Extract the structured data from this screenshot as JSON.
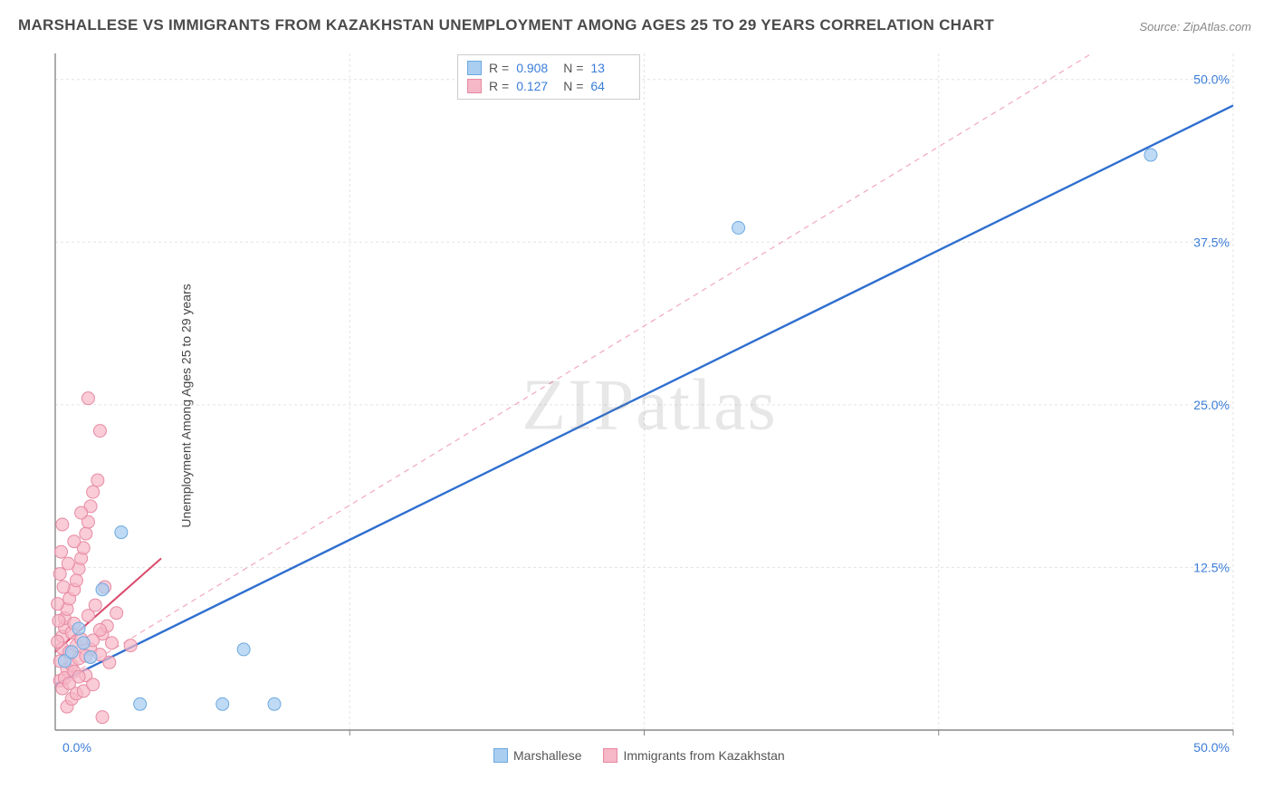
{
  "title": "MARSHALLESE VS IMMIGRANTS FROM KAZAKHSTAN UNEMPLOYMENT AMONG AGES 25 TO 29 YEARS CORRELATION CHART",
  "source": "Source: ZipAtlas.com",
  "y_axis_label": "Unemployment Among Ages 25 to 29 years",
  "watermark": "ZIPatlas",
  "chart": {
    "type": "scatter",
    "xlim": [
      0,
      50
    ],
    "ylim": [
      0,
      52
    ],
    "background_color": "#ffffff",
    "grid_color": "#e3e3e3",
    "axis_line_color": "#888888",
    "x_ticks": [
      0,
      12.5,
      25,
      37.5,
      50
    ],
    "y_ticks": [
      12.5,
      25,
      37.5,
      50
    ],
    "y_tick_labels": [
      "12.5%",
      "25.0%",
      "37.5%",
      "50.0%"
    ],
    "x_origin_label": "0.0%",
    "x_end_label": "50.0%",
    "tick_label_color": "#3b7dd8",
    "tick_label_fontsize": 14,
    "series_a": {
      "name": "Marshallese",
      "color_fill": "#a9cef0",
      "color_stroke": "#6da9e0",
      "marker_radius": 7,
      "marker_opacity": 0.75,
      "R": "0.908",
      "N": "13",
      "trend": {
        "solid": {
          "x1": 0,
          "y1": 3.5,
          "x2": 50,
          "y2": 48.0,
          "color": "#2f6fd0",
          "width": 2.4
        },
        "dashed": {
          "x1": 0,
          "y1": 3.5,
          "x2": 44,
          "y2": 52,
          "color": "#f2a9bb",
          "width": 1.2,
          "dash": "6,5"
        }
      },
      "points": [
        [
          0.4,
          5.3
        ],
        [
          0.7,
          6.0
        ],
        [
          1.5,
          5.6
        ],
        [
          2.0,
          10.8
        ],
        [
          2.8,
          15.2
        ],
        [
          3.6,
          2.0
        ],
        [
          7.1,
          2.0
        ],
        [
          9.3,
          2.0
        ],
        [
          8.0,
          6.2
        ],
        [
          1.2,
          6.7
        ],
        [
          1.0,
          7.8
        ],
        [
          29.0,
          38.6
        ],
        [
          46.5,
          44.2
        ]
      ]
    },
    "series_b": {
      "name": "Immigrants from Kazakhstan",
      "color_fill": "#f6b7c6",
      "color_stroke": "#e78aa3",
      "marker_radius": 7,
      "marker_opacity": 0.7,
      "R": "0.127",
      "N": "64",
      "trend": {
        "solid": {
          "x1": 0,
          "y1": 6.0,
          "x2": 4.5,
          "y2": 13.2,
          "color": "#d94a6a",
          "width": 2.0
        }
      },
      "points": [
        [
          0.2,
          5.3
        ],
        [
          0.3,
          6.3
        ],
        [
          0.3,
          7.2
        ],
        [
          0.4,
          7.9
        ],
        [
          0.4,
          8.6
        ],
        [
          0.5,
          4.7
        ],
        [
          0.5,
          9.3
        ],
        [
          0.6,
          6.0
        ],
        [
          0.6,
          10.1
        ],
        [
          0.7,
          5.0
        ],
        [
          0.7,
          7.5
        ],
        [
          0.8,
          8.2
        ],
        [
          0.8,
          10.8
        ],
        [
          0.9,
          6.5
        ],
        [
          0.9,
          11.5
        ],
        [
          1.0,
          12.4
        ],
        [
          1.0,
          5.5
        ],
        [
          1.1,
          13.2
        ],
        [
          1.1,
          7.0
        ],
        [
          1.2,
          14.0
        ],
        [
          1.3,
          15.1
        ],
        [
          1.3,
          4.2
        ],
        [
          1.4,
          16.0
        ],
        [
          1.4,
          8.8
        ],
        [
          1.5,
          17.2
        ],
        [
          1.5,
          6.2
        ],
        [
          1.6,
          18.3
        ],
        [
          1.7,
          9.6
        ],
        [
          1.8,
          19.2
        ],
        [
          1.9,
          5.8
        ],
        [
          2.0,
          7.4
        ],
        [
          2.1,
          11.0
        ],
        [
          2.2,
          8.0
        ],
        [
          2.4,
          6.7
        ],
        [
          2.6,
          9.0
        ],
        [
          0.2,
          3.8
        ],
        [
          0.3,
          3.2
        ],
        [
          0.4,
          4.0
        ],
        [
          0.6,
          3.6
        ],
        [
          0.8,
          4.5
        ],
        [
          1.0,
          4.1
        ],
        [
          1.3,
          5.7
        ],
        [
          1.6,
          6.9
        ],
        [
          1.9,
          7.7
        ],
        [
          2.3,
          5.2
        ],
        [
          0.1,
          6.8
        ],
        [
          0.1,
          9.7
        ],
        [
          0.2,
          12.0
        ],
        [
          0.25,
          13.7
        ],
        [
          0.3,
          15.8
        ],
        [
          1.4,
          25.5
        ],
        [
          1.9,
          23.0
        ],
        [
          3.2,
          6.5
        ],
        [
          2.0,
          1.0
        ],
        [
          0.5,
          1.8
        ],
        [
          0.7,
          2.4
        ],
        [
          0.9,
          2.8
        ],
        [
          1.2,
          3.0
        ],
        [
          1.6,
          3.5
        ],
        [
          0.15,
          8.4
        ],
        [
          0.35,
          11.0
        ],
        [
          0.55,
          12.8
        ],
        [
          0.8,
          14.5
        ],
        [
          1.1,
          16.7
        ]
      ]
    }
  },
  "legend_bottom": {
    "a_label": "Marshallese",
    "b_label": "Immigrants from Kazakhstan"
  }
}
